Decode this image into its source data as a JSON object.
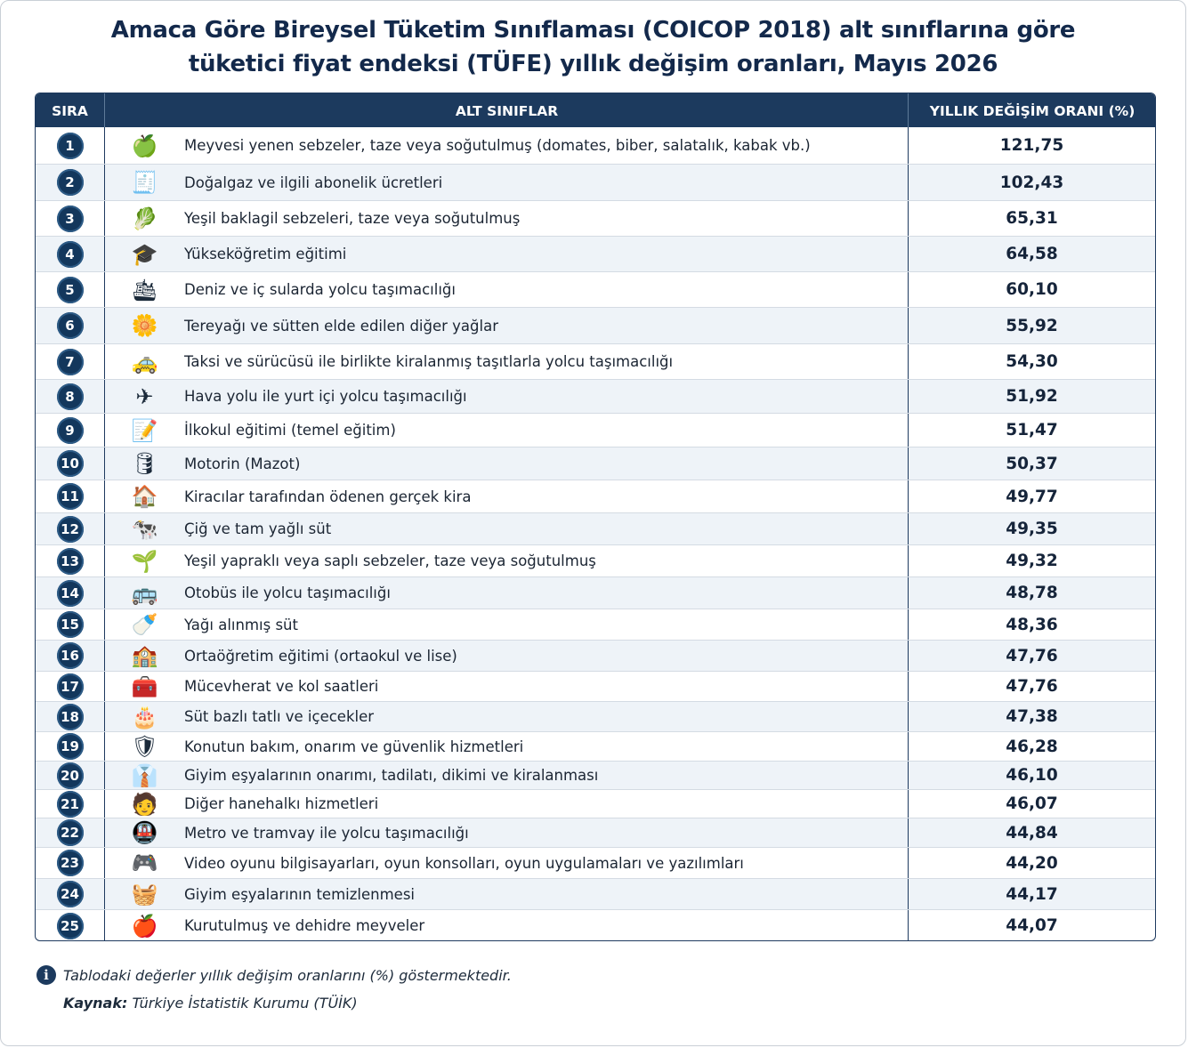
{
  "title": {
    "line1": "Amaca Göre Bireysel Tüketim Sınıflaması (COICOP 2018) alt sınıflarına göre",
    "line2": "tüketici fiyat endeksi (TÜFE) yıllık değişim oranları, Mayıs 2026"
  },
  "header": {
    "rank": "SIRA",
    "category": "ALT SINIFLAR",
    "value": "YILLIK DEĞİŞİM ORANI (%)"
  },
  "chart_data": {
    "type": "table",
    "columns": [
      "SIRA",
      "ALT SINIFLAR",
      "YILLIK DEĞİŞİM ORANI (%)"
    ],
    "rows": [
      {
        "rank": "1",
        "name": "Meyvesi yenen sebzeler, taze veya soğutulmuş (domates, biber, salatalık, kabak vb.)",
        "value": "121,75",
        "icon": "apple-icon",
        "glyph": "🍏"
      },
      {
        "rank": "2",
        "name": "Doğalgaz ve ilgili abonelik ücretleri",
        "value": "102,43",
        "icon": "bill-icon",
        "glyph": "🧾"
      },
      {
        "rank": "3",
        "name": "Yeşil baklagil sebzeleri, taze veya soğutulmuş",
        "value": "65,31",
        "icon": "leafy-green-icon",
        "glyph": "🥬"
      },
      {
        "rank": "4",
        "name": "Yükseköğretim eğitimi",
        "value": "64,58",
        "icon": "graduation-cap-icon",
        "glyph": "🎓"
      },
      {
        "rank": "5",
        "name": "Deniz ve iç sularda yolcu taşımacılığı",
        "value": "60,10",
        "icon": "ship-icon",
        "glyph": "🛳"
      },
      {
        "rank": "6",
        "name": "Tereyağı ve sütten elde edilen diğer yağlar",
        "value": "55,92",
        "icon": "oil-bottle-icon",
        "glyph": "🌼"
      },
      {
        "rank": "7",
        "name": "Taksi ve sürücüsü ile birlikte kiralanmış taşıtlarla yolcu taşımacılığı",
        "value": "54,30",
        "icon": "taxi-icon",
        "glyph": "🚕"
      },
      {
        "rank": "8",
        "name": "Hava yolu ile yurt içi yolcu taşımacılığı",
        "value": "51,92",
        "icon": "airplane-icon",
        "glyph": "✈"
      },
      {
        "rank": "9",
        "name": "İlkokul eğitimi (temel eğitim)",
        "value": "51,47",
        "icon": "notebook-pencil-icon",
        "glyph": "📝"
      },
      {
        "rank": "10",
        "name": "Motorin (Mazot)",
        "value": "50,37",
        "icon": "fuel-can-icon",
        "glyph": "🛢"
      },
      {
        "rank": "11",
        "name": "Kiracılar tarafından ödenen gerçek kira",
        "value": "49,77",
        "icon": "house-icon",
        "glyph": "🏠"
      },
      {
        "rank": "12",
        "name": "Çiğ ve tam yağlı süt",
        "value": "49,35",
        "icon": "milk-cow-icon",
        "glyph": "🐄"
      },
      {
        "rank": "13",
        "name": "Yeşil yapraklı veya saplı sebzeler, taze veya soğutulmuş",
        "value": "49,32",
        "icon": "sprout-icon",
        "glyph": "🌱"
      },
      {
        "rank": "14",
        "name": "Otobüs ile yolcu taşımacılığı",
        "value": "48,78",
        "icon": "bus-icon",
        "glyph": "🚌"
      },
      {
        "rank": "15",
        "name": "Yağı alınmış süt",
        "value": "48,36",
        "icon": "milk-bottle-icon",
        "glyph": "🍼"
      },
      {
        "rank": "16",
        "name": "Ortaöğretim eğitimi (ortaokul ve lise)",
        "value": "47,76",
        "icon": "school-icon",
        "glyph": "🏫"
      },
      {
        "rank": "17",
        "name": "Mücevherat ve kol saatleri",
        "value": "47,76",
        "icon": "first-aid-kit-icon",
        "glyph": "🧰"
      },
      {
        "rank": "18",
        "name": "Süt bazlı tatlı ve içecekler",
        "value": "47,38",
        "icon": "cake-icon",
        "glyph": "🎂"
      },
      {
        "rank": "19",
        "name": "Konutun bakım, onarım ve güvenlik hizmetleri",
        "value": "46,28",
        "icon": "shield-icon",
        "glyph": "🛡"
      },
      {
        "rank": "20",
        "name": "Giyim eşyalarının onarımı, tadilatı, dikimi ve kiralanması",
        "value": "46,10",
        "icon": "hanger-icon",
        "glyph": "👔"
      },
      {
        "rank": "21",
        "name": "Diğer hanehalkı hizmetleri",
        "value": "46,07",
        "icon": "service-worker-icon",
        "glyph": "🧑"
      },
      {
        "rank": "22",
        "name": "Metro ve tramvay ile yolcu taşımacılığı",
        "value": "44,84",
        "icon": "metro-icon",
        "glyph": "🚇"
      },
      {
        "rank": "23",
        "name": "Video oyunu bilgisayarları, oyun konsolları, oyun uygulamaları ve yazılımları",
        "value": "44,20",
        "icon": "gamepad-icon",
        "glyph": "🎮"
      },
      {
        "rank": "24",
        "name": "Giyim eşyalarının temizlenmesi",
        "value": "44,17",
        "icon": "washing-machine-icon",
        "glyph": "🧺"
      },
      {
        "rank": "25",
        "name": "Kurutulmuş ve dehidre meyveler",
        "value": "44,07",
        "icon": "dried-fruit-icon",
        "glyph": "🍎"
      }
    ]
  },
  "footer": {
    "note": "Tablodaki değerler yıllık değişim oranlarını (%) göstermektedir.",
    "source_label": "Kaynak:",
    "source_text": " Türkiye İstatistik Kurumu (TÜİK)"
  },
  "colors": {
    "header_bg": "#1c3a5e",
    "badge_bg": "#13375c",
    "title": "#13294b",
    "stripe": "#eef3f8"
  }
}
